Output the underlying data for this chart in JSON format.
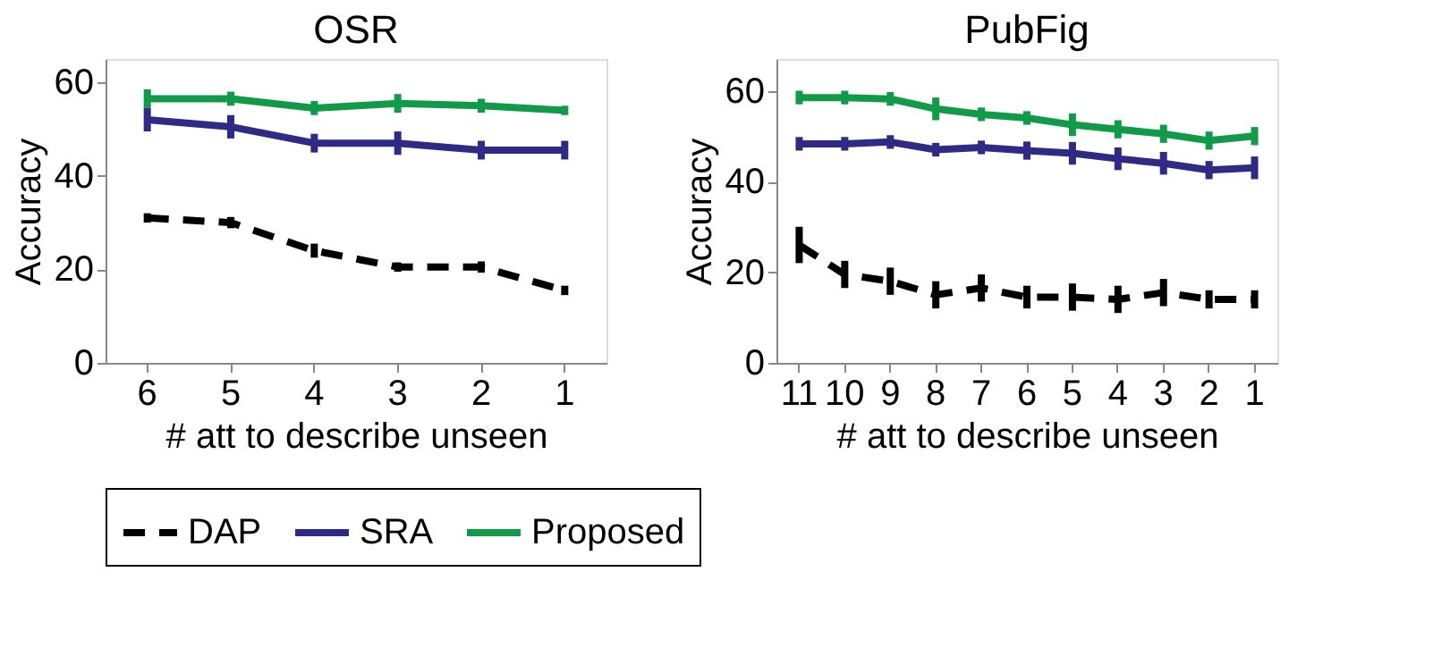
{
  "chart_data": [
    {
      "type": "line",
      "title": "OSR",
      "xlabel": "# att to describe unseen",
      "ylabel": "Accuracy",
      "categories": [
        "6",
        "5",
        "4",
        "3",
        "2",
        "1"
      ],
      "ylim": [
        0,
        65
      ],
      "yticks": [
        0,
        20,
        40,
        60
      ],
      "legend": "bottom",
      "marker": "none",
      "grid": false,
      "series": [
        {
          "name": "DAP",
          "color": "#000000",
          "line_style": "dashed",
          "values": [
            31,
            30,
            24,
            20.5,
            20.5,
            15.5
          ],
          "errors": [
            1,
            1.2,
            1.5,
            1,
            1.2,
            1
          ]
        },
        {
          "name": "SRA",
          "color": "#2e2a85",
          "line_style": "solid",
          "values": [
            52,
            50.5,
            47,
            47,
            45.5,
            45.5
          ],
          "errors": [
            2.5,
            2.5,
            2,
            2.5,
            2,
            2
          ]
        },
        {
          "name": "Proposed",
          "color": "#119a48",
          "line_style": "solid",
          "values": [
            56.5,
            56.5,
            54.5,
            55.5,
            55,
            54
          ],
          "errors": [
            2,
            1.5,
            1.5,
            2,
            1.5,
            1
          ]
        }
      ]
    },
    {
      "type": "line",
      "title": "PubFig",
      "xlabel": "# att to describe unseen",
      "ylabel": "Accuracy",
      "categories": [
        "11",
        "10",
        "9",
        "8",
        "7",
        "6",
        "5",
        "4",
        "3",
        "2",
        "1"
      ],
      "ylim": [
        0,
        67
      ],
      "yticks": [
        0,
        20,
        40,
        60
      ],
      "legend": "bottom",
      "marker": "none",
      "grid": false,
      "series": [
        {
          "name": "DAP",
          "color": "#000000",
          "line_style": "dashed",
          "values": [
            26,
            19.5,
            18,
            15,
            16.5,
            14.5,
            14.5,
            14,
            15.5,
            14,
            14
          ],
          "errors": [
            4,
            3,
            3,
            3,
            3,
            2.5,
            3,
            3,
            3,
            2,
            2
          ]
        },
        {
          "name": "SRA",
          "color": "#2e2a85",
          "line_style": "solid",
          "values": [
            48.3,
            48.3,
            48.7,
            47,
            47.5,
            46.8,
            46.2,
            45,
            44,
            42.5,
            43
          ],
          "errors": [
            1.5,
            1.5,
            1.5,
            1.5,
            1.5,
            2,
            2.5,
            2.5,
            2.5,
            2,
            2.5
          ]
        },
        {
          "name": "Proposed",
          "color": "#119a48",
          "line_style": "solid",
          "values": [
            58.5,
            58.5,
            58.2,
            56,
            54.8,
            54,
            52.5,
            51.5,
            50.5,
            49,
            50
          ],
          "errors": [
            1.5,
            1.5,
            1.5,
            2.5,
            1.5,
            1.5,
            2.5,
            2,
            2,
            2,
            2
          ]
        }
      ]
    }
  ]
}
